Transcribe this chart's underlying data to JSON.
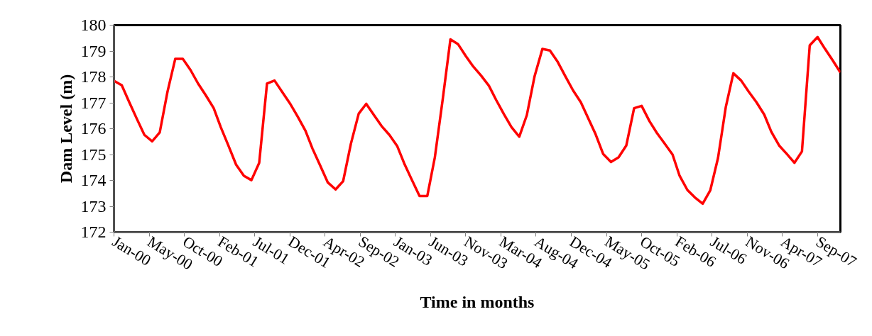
{
  "chart_data": {
    "type": "line",
    "xlabel": "Time in months",
    "ylabel": "Dam Level (m)",
    "x": [
      "2000-01",
      "2000-02",
      "2000-03",
      "2000-04",
      "2000-05",
      "2000-06",
      "2000-07",
      "2000-08",
      "2000-09",
      "2000-10",
      "2000-11",
      "2000-12",
      "2001-01",
      "2001-02",
      "2001-03",
      "2001-04",
      "2001-05",
      "2001-06",
      "2001-07",
      "2001-08",
      "2001-09",
      "2001-10",
      "2001-11",
      "2001-12",
      "2002-01",
      "2002-02",
      "2002-03",
      "2002-04",
      "2002-05",
      "2002-06",
      "2002-07",
      "2002-08",
      "2002-09",
      "2002-10",
      "2002-11",
      "2002-12",
      "2003-01",
      "2003-02",
      "2003-03",
      "2003-04",
      "2003-05",
      "2003-06",
      "2003-07",
      "2003-08",
      "2003-09",
      "2003-10",
      "2003-11",
      "2003-12",
      "2004-01",
      "2004-02",
      "2004-03",
      "2004-04",
      "2004-05",
      "2004-06",
      "2004-07",
      "2004-08",
      "2004-09",
      "2004-10",
      "2004-11",
      "2004-12",
      "2005-01",
      "2005-02",
      "2005-03",
      "2005-04",
      "2005-05",
      "2005-06",
      "2005-07",
      "2005-08",
      "2005-09",
      "2005-10",
      "2005-11",
      "2005-12",
      "2006-01",
      "2006-02",
      "2006-03",
      "2006-04",
      "2006-05",
      "2006-06",
      "2006-07",
      "2006-08",
      "2006-09",
      "2006-10",
      "2006-11",
      "2006-12",
      "2007-01",
      "2007-02",
      "2007-03",
      "2007-04",
      "2007-05",
      "2007-06",
      "2007-07",
      "2007-08",
      "2007-09",
      "2007-10",
      "2007-11",
      "2007-12"
    ],
    "series": [
      {
        "color": "#ff0000",
        "values": [
          177.85,
          177.68,
          177.04,
          176.38,
          175.76,
          175.51,
          175.85,
          177.43,
          178.7,
          178.7,
          178.26,
          177.74,
          177.28,
          176.79,
          176.06,
          175.33,
          174.61,
          174.18,
          174.01,
          174.68,
          177.74,
          177.86,
          177.41,
          176.98,
          176.47,
          175.92,
          175.23,
          174.57,
          173.92,
          173.65,
          173.97,
          175.42,
          176.58,
          176.96,
          176.52,
          176.1,
          175.76,
          175.33,
          174.66,
          174.01,
          173.4,
          173.4,
          174.89,
          177.11,
          179.45,
          179.27,
          178.81,
          178.4,
          178.05,
          177.66,
          177.11,
          176.56,
          176.06,
          175.69,
          176.52,
          178.03,
          179.08,
          179.02,
          178.58,
          178.03,
          177.48,
          177.02,
          176.43,
          175.78,
          175.02,
          174.71,
          174.89,
          175.35,
          176.79,
          176.88,
          176.29,
          175.83,
          175.42,
          175.0,
          174.18,
          173.63,
          173.34,
          173.1,
          173.61,
          174.87,
          176.84,
          178.14,
          177.86,
          177.43,
          177.02,
          176.54,
          175.88,
          175.35,
          175.03,
          174.68,
          175.12,
          179.22,
          179.54,
          179.08,
          178.63,
          178.17
        ]
      }
    ],
    "xlim": [
      "2000-01",
      "2007-12"
    ],
    "xticks": [
      {
        "value": "2000-01-01",
        "label": "Jan-00"
      },
      {
        "value": "2000-05-20",
        "label": "May-00"
      },
      {
        "value": "2000-10-07",
        "label": "Oct-00"
      },
      {
        "value": "2001-02-24",
        "label": "Feb-01"
      },
      {
        "value": "2001-07-14",
        "label": "Jul-01"
      },
      {
        "value": "2001-12-01",
        "label": "Dec-01"
      },
      {
        "value": "2002-04-20",
        "label": "Apr-02"
      },
      {
        "value": "2002-09-07",
        "label": "Sep-02"
      },
      {
        "value": "2003-01-25",
        "label": "Jan-03"
      },
      {
        "value": "2003-06-14",
        "label": "Jun-03"
      },
      {
        "value": "2003-11-01",
        "label": "Nov-03"
      },
      {
        "value": "2004-03-20",
        "label": "Mar-04"
      },
      {
        "value": "2004-08-07",
        "label": "Aug-04"
      },
      {
        "value": "2004-12-25",
        "label": "Dec-04"
      },
      {
        "value": "2005-05-14",
        "label": "May-05"
      },
      {
        "value": "2005-10-01",
        "label": "Oct-05"
      },
      {
        "value": "2006-02-18",
        "label": "Feb-06"
      },
      {
        "value": "2006-07-08",
        "label": "Jul-06"
      },
      {
        "value": "2006-11-25",
        "label": "Nov-06"
      },
      {
        "value": "2007-04-14",
        "label": "Apr-07"
      },
      {
        "value": "2007-09-01",
        "label": "Sep-07"
      }
    ],
    "ylim": [
      172,
      180
    ],
    "yticks": [
      172,
      173,
      174,
      175,
      176,
      177,
      178,
      179,
      180
    ],
    "grid": false,
    "marker": "none",
    "line_style": "solid"
  }
}
